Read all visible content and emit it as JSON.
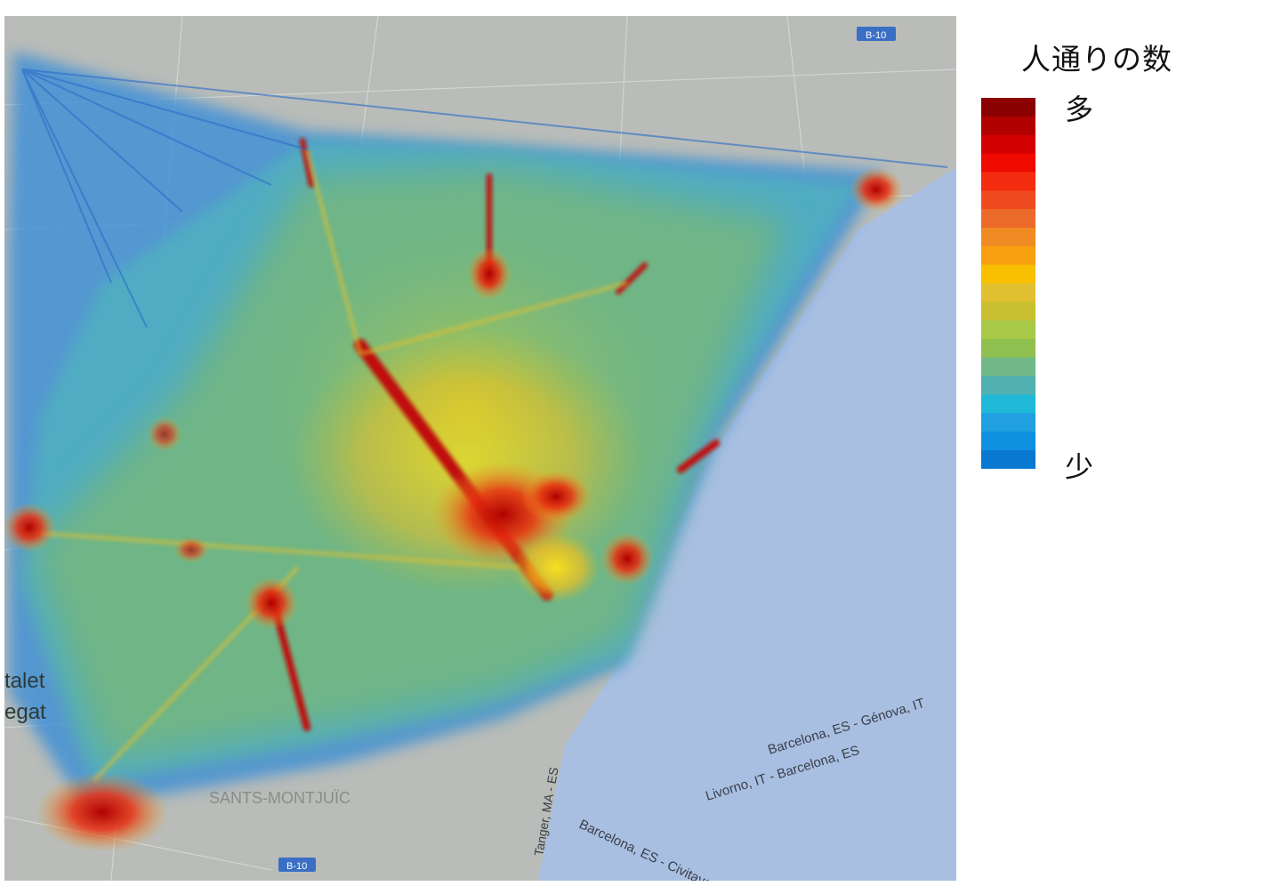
{
  "legend": {
    "title": "人通りの数",
    "high_label": "多",
    "low_label": "少",
    "colors": [
      "#8b0000",
      "#b00000",
      "#d20000",
      "#f00a00",
      "#f42c10",
      "#f04a20",
      "#ec6a2a",
      "#f08a22",
      "#f8a010",
      "#f8c000",
      "#e0c030",
      "#c8c030",
      "#a8c848",
      "#90c050",
      "#70b888",
      "#50b0b0",
      "#20b8d8",
      "#20a0e0",
      "#1090e0",
      "#0878d0"
    ]
  },
  "map": {
    "labels": {
      "route_genova": "Barcelona, ES - Génova, IT",
      "route_livorno": "Livorno, IT - Barcelona, ES",
      "route_civitavecchia": "Barcelona, ES - Civitavecchia",
      "route_tanger": "Tanger, MA - ES",
      "district_left_1": "talet",
      "district_left_2": "egat",
      "district_sants": "SANTS-MONTJUÏC",
      "road_top": "B-10",
      "road_bottom": "B-10"
    },
    "colors": {
      "land": "#b9bcb8",
      "sea": "#a9bfe2",
      "road_badge": "#3a6fc4"
    }
  }
}
